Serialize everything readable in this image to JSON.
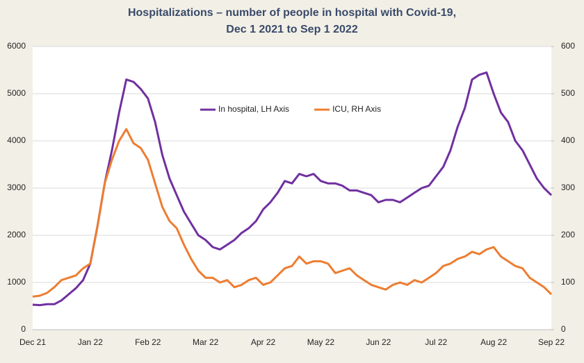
{
  "chart_data": {
    "type": "line",
    "title": [
      "Hospitalizations – number of people in hospital with Covid-19,",
      "Dec 1 2021 to Sep 1  2022"
    ],
    "categories": [
      "Dec 21",
      null,
      null,
      null,
      null,
      null,
      null,
      null,
      "Jan 22",
      null,
      null,
      null,
      null,
      null,
      null,
      null,
      "Feb 22",
      null,
      null,
      null,
      null,
      null,
      null,
      null,
      "Mar 22",
      null,
      null,
      null,
      null,
      null,
      null,
      null,
      "Apr 22",
      null,
      null,
      null,
      null,
      null,
      null,
      null,
      "May 22",
      null,
      null,
      null,
      null,
      null,
      null,
      null,
      "Jun 22",
      null,
      null,
      null,
      null,
      null,
      null,
      null,
      "Jul 22",
      null,
      null,
      null,
      null,
      null,
      null,
      null,
      "Aug 22",
      null,
      null,
      null,
      null,
      null,
      null,
      null,
      "Sep 22"
    ],
    "series": [
      {
        "name": "In hospital, LH Axis",
        "color": "#7030a0",
        "axis": "y",
        "values": [
          530,
          520,
          540,
          540,
          620,
          750,
          880,
          1050,
          1400,
          2200,
          3100,
          3800,
          4600,
          5300,
          5250,
          5100,
          4900,
          4400,
          3700,
          3200,
          2850,
          2500,
          2250,
          2000,
          1900,
          1750,
          1700,
          1800,
          1900,
          2050,
          2150,
          2300,
          2550,
          2700,
          2900,
          3150,
          3100,
          3300,
          3250,
          3300,
          3150,
          3100,
          3100,
          3050,
          2950,
          2950,
          2900,
          2850,
          2700,
          2750,
          2750,
          2700,
          2800,
          2900,
          3000,
          3050,
          3250,
          3450,
          3800,
          4300,
          4700,
          5300,
          5400,
          5450,
          5000,
          4600,
          4400,
          4000,
          3800,
          3500,
          3200,
          3000,
          2850
        ]
      },
      {
        "name": "ICU, RH Axis",
        "color": "#ed7d31",
        "axis": "y2",
        "values": [
          70,
          72,
          78,
          90,
          105,
          110,
          115,
          130,
          140,
          220,
          310,
          360,
          400,
          425,
          395,
          385,
          360,
          310,
          260,
          230,
          215,
          180,
          150,
          125,
          110,
          110,
          100,
          105,
          90,
          95,
          105,
          110,
          95,
          100,
          115,
          130,
          135,
          155,
          140,
          145,
          145,
          140,
          120,
          125,
          130,
          115,
          105,
          95,
          90,
          85,
          95,
          100,
          95,
          105,
          100,
          110,
          120,
          135,
          140,
          150,
          155,
          165,
          160,
          170,
          175,
          155,
          145,
          135,
          130,
          110,
          100,
          90,
          75
        ]
      }
    ],
    "ylim": [
      0,
      6000
    ],
    "yticks": [
      0,
      1000,
      2000,
      3000,
      4000,
      5000,
      6000
    ],
    "y2lim": [
      0,
      600
    ],
    "y2ticks": [
      0,
      100,
      200,
      300,
      400,
      500,
      600
    ],
    "grid": true
  }
}
